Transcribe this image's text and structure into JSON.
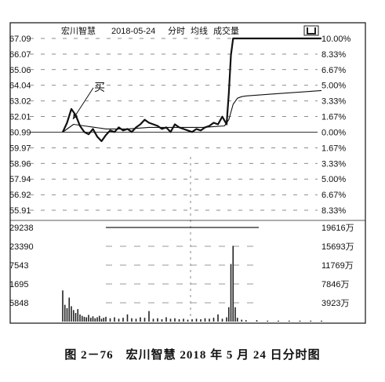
{
  "chart_data": {
    "type": "line",
    "title": "宏川智慧 2018-05-24 分时 均线 成交量",
    "title_parts": [
      "宏川智慧",
      "2018-05-24",
      "分时",
      "均线",
      "成交量"
    ],
    "corner_icon": "bracket-icon",
    "annotation": "买",
    "caption": "图 2－76　宏川智慧 2018 年 5 月 24 日分时图",
    "price_axis": {
      "base": 60.99,
      "ticks": [
        "67.09",
        "66.07",
        "65.06",
        "64.04",
        "63.02",
        "62.01",
        "60.99",
        "59.97",
        "58.96",
        "57.94",
        "56.92",
        "55.91"
      ],
      "values": [
        67.09,
        66.07,
        65.06,
        64.04,
        63.02,
        62.01,
        60.99,
        59.97,
        58.96,
        57.94,
        56.92,
        55.91
      ],
      "pct_labels": [
        "10.00%",
        "8.33%",
        "6.67%",
        "5.00%",
        "3.33%",
        "1.67%",
        "0.00%",
        "1.67%",
        "3.33%",
        "5.00%",
        "6.67%",
        "8.33%"
      ],
      "ylim": [
        55.91,
        67.09
      ]
    },
    "volume_axis": {
      "left_ticks": [
        "29238",
        "23390",
        "7543",
        "1695",
        "5848"
      ],
      "right_ticks": [
        "19616万",
        "15693万",
        "11769万",
        "7846万",
        "3923万"
      ],
      "right_values": [
        19616,
        15693,
        11769,
        7846,
        3923
      ],
      "unit": "万"
    },
    "x_range": [
      0,
      240
    ],
    "series": [
      {
        "role": "price",
        "x": [
          0,
          4,
          8,
          12,
          16,
          20,
          24,
          28,
          32,
          36,
          40,
          44,
          48,
          52,
          56,
          60,
          64,
          68,
          72,
          76,
          80,
          84,
          88,
          92,
          96,
          100,
          104,
          108,
          112,
          116,
          120,
          124,
          128,
          132,
          136,
          140,
          144,
          148,
          152,
          154,
          156,
          158,
          160,
          162,
          164,
          166,
          168,
          172,
          180,
          190,
          200,
          210,
          220,
          230,
          240
        ],
        "y": [
          60.99,
          61.6,
          62.5,
          62.1,
          61.4,
          61.0,
          60.85,
          61.2,
          60.7,
          60.4,
          60.8,
          61.1,
          61.0,
          61.3,
          61.1,
          61.2,
          61.0,
          61.3,
          61.5,
          61.8,
          61.6,
          61.5,
          61.4,
          61.2,
          61.3,
          61.0,
          61.5,
          61.3,
          61.2,
          61.1,
          61.0,
          61.2,
          61.1,
          61.3,
          61.4,
          61.6,
          61.5,
          62.0,
          61.5,
          63.5,
          66.0,
          67.09,
          67.09,
          67.09,
          67.09,
          67.09,
          67.09,
          67.09,
          67.09,
          67.09,
          67.09,
          67.09,
          67.09,
          67.09,
          67.09
        ]
      },
      {
        "role": "average",
        "x": [
          0,
          10,
          20,
          30,
          40,
          50,
          60,
          70,
          80,
          90,
          100,
          110,
          120,
          130,
          140,
          150,
          154,
          158,
          162,
          166,
          170,
          180,
          200,
          220,
          240
        ],
        "y": [
          60.99,
          61.5,
          61.4,
          61.3,
          61.2,
          61.2,
          61.2,
          61.25,
          61.3,
          61.3,
          61.3,
          61.3,
          61.3,
          61.3,
          61.35,
          61.4,
          61.8,
          62.8,
          63.2,
          63.3,
          63.35,
          63.4,
          63.5,
          63.6,
          63.7
        ]
      }
    ],
    "volume": {
      "x": [
        0,
        2,
        4,
        6,
        8,
        10,
        12,
        14,
        16,
        18,
        20,
        22,
        24,
        26,
        28,
        30,
        32,
        34,
        36,
        38,
        40,
        44,
        48,
        52,
        56,
        60,
        64,
        68,
        72,
        76,
        80,
        84,
        88,
        92,
        96,
        100,
        104,
        108,
        112,
        116,
        120,
        124,
        128,
        132,
        136,
        140,
        144,
        148,
        152,
        154,
        156,
        158,
        160,
        162,
        166,
        170,
        180,
        190,
        200,
        210,
        220,
        230,
        240
      ],
      "y": [
        6500,
        3500,
        2800,
        5000,
        3200,
        2400,
        1800,
        2600,
        1500,
        1200,
        1000,
        900,
        1400,
        800,
        1100,
        700,
        900,
        1200,
        600,
        800,
        1000,
        700,
        900,
        600,
        800,
        1500,
        700,
        600,
        900,
        800,
        2200,
        600,
        700,
        500,
        900,
        600,
        700,
        500,
        600,
        400,
        500,
        600,
        500,
        700,
        600,
        800,
        1500,
        600,
        900,
        3000,
        12000,
        15800,
        3000,
        800,
        400,
        300,
        300,
        200,
        200,
        200,
        200,
        200,
        200
      ]
    }
  }
}
